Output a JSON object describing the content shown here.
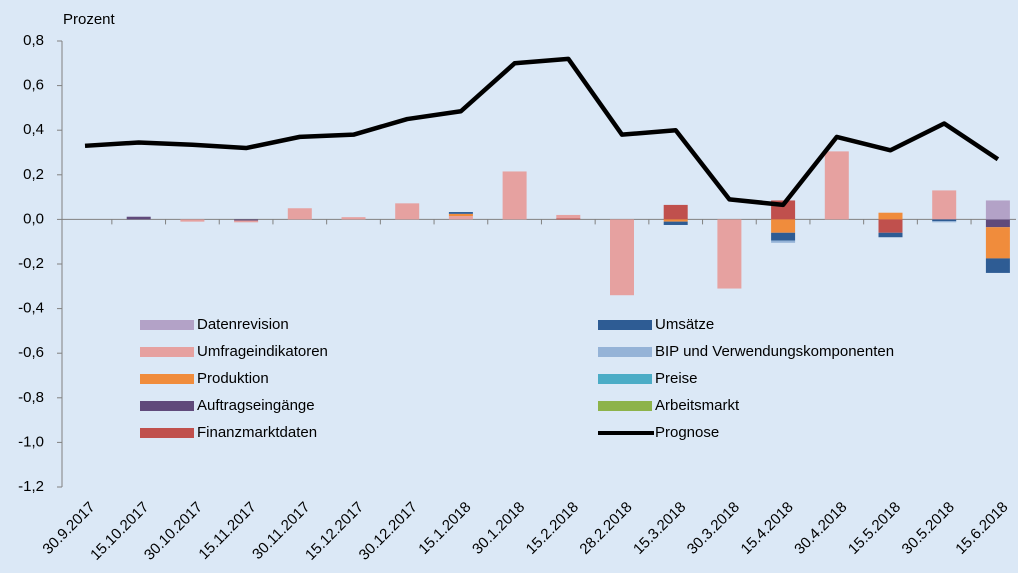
{
  "chart_data": {
    "type": "bar",
    "stacked": true,
    "y_axis_label": "Prozent",
    "categories": [
      "30.9.2017",
      "15.10.2017",
      "30.10.2017",
      "15.11.2017",
      "30.11.2017",
      "15.12.2017",
      "30.12.2017",
      "15.1.2018",
      "30.1.2018",
      "15.2.2018",
      "28.2.2018",
      "15.3.2018",
      "30.3.2018",
      "15.4.2018",
      "30.4.2018",
      "15.5.2018",
      "30.5.2018",
      "15.6.2018"
    ],
    "ylim": [
      -1.2,
      0.8
    ],
    "yticks": [
      {
        "value": 0.8,
        "label": "0,8"
      },
      {
        "value": 0.6,
        "label": "0,6"
      },
      {
        "value": 0.4,
        "label": "0,4"
      },
      {
        "value": 0.2,
        "label": "0,2"
      },
      {
        "value": 0,
        "label": "0,0"
      },
      {
        "value": -0.2,
        "label": "-0,2"
      },
      {
        "value": -0.4,
        "label": "-0,4"
      },
      {
        "value": -0.6,
        "label": "-0,6"
      },
      {
        "value": -0.8,
        "label": "-0,8"
      },
      {
        "value": -1.0,
        "label": "-1,0"
      },
      {
        "value": -1.2,
        "label": "-1,2"
      }
    ],
    "series": [
      {
        "name": "Datenrevision",
        "color": "#b3a2c7",
        "values": [
          0,
          0,
          0,
          0,
          0,
          0,
          0,
          0,
          0,
          0,
          0,
          0,
          0,
          0,
          0,
          0,
          0,
          0.085
        ]
      },
      {
        "name": "Umsätze",
        "color": "#2e5c94",
        "values": [
          0,
          0,
          0,
          0,
          0,
          0,
          0,
          0.008,
          0,
          0,
          0,
          -0.015,
          0,
          -0.035,
          0,
          -0.02,
          -0.008,
          -0.065
        ]
      },
      {
        "name": "Umfrageindikatoren",
        "color": "#e6a1a0",
        "values": [
          0,
          0,
          -0.01,
          -0.008,
          0.05,
          0.01,
          0.072,
          0.015,
          0.215,
          0.015,
          -0.34,
          0,
          -0.31,
          0,
          0.305,
          0,
          0.13,
          0
        ]
      },
      {
        "name": "BIP und Verwendungskomponenten",
        "color": "#95b3d7",
        "values": [
          0,
          0,
          0,
          0,
          0,
          0,
          0,
          0,
          0,
          0,
          0,
          0,
          0,
          -0.01,
          0,
          0,
          -0.005,
          0
        ]
      },
      {
        "name": "Produktion",
        "color": "#f08c3c",
        "values": [
          0,
          0,
          0,
          0,
          0,
          0,
          0,
          0.01,
          0,
          0,
          0,
          -0.01,
          0,
          -0.06,
          0,
          0.03,
          0,
          -0.14
        ]
      },
      {
        "name": "Preise",
        "color": "#4bacc6",
        "values": [
          0,
          0,
          0,
          0,
          0,
          0,
          0,
          0,
          0,
          0,
          0,
          0,
          0,
          0,
          0,
          0,
          0,
          0
        ]
      },
      {
        "name": "Auftragseingänge",
        "color": "#604a7b",
        "values": [
          0,
          0.012,
          0,
          -0.005,
          0,
          0,
          0,
          0,
          0,
          0,
          0,
          0,
          0,
          0,
          0,
          0,
          0,
          -0.035
        ]
      },
      {
        "name": "Arbeitsmarkt",
        "color": "#8db34a",
        "values": [
          0,
          0,
          0,
          0,
          0,
          0,
          0,
          0,
          0,
          0,
          0,
          0,
          0,
          0,
          0,
          0,
          0,
          0
        ]
      },
      {
        "name": "Finanzmarktdaten",
        "color": "#c0504d",
        "values": [
          0,
          0,
          0,
          0,
          0,
          0,
          0,
          0,
          0,
          0.005,
          0,
          0.065,
          0,
          0.085,
          0,
          -0.06,
          0,
          0
        ]
      },
      {
        "name": "Prognose",
        "type": "line",
        "color": "#000000",
        "values": [
          0.33,
          0.345,
          0.335,
          0.32,
          0.37,
          0.38,
          0.45,
          0.485,
          0.7,
          0.72,
          0.38,
          0.4,
          0.09,
          0.065,
          0.37,
          0.31,
          0.43,
          0.27
        ]
      }
    ]
  }
}
